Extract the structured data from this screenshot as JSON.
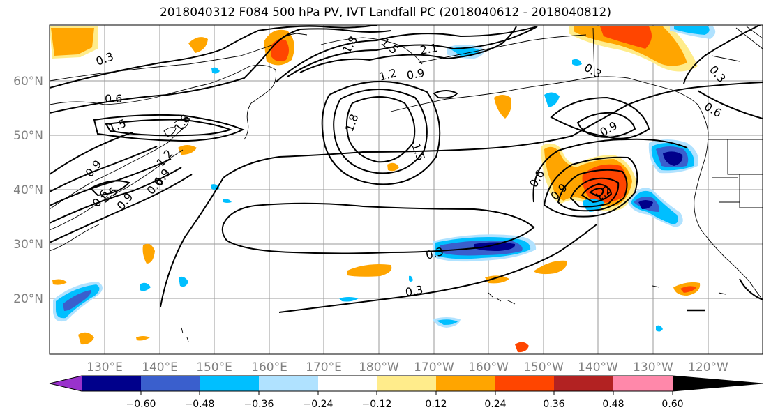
{
  "title": "2018040312 F084 500 hPa PV, IVT Landfall PC (2018040612 - 2018040812)",
  "lat_labels": [
    "20°N",
    "30°N",
    "40°N",
    "50°N",
    "60°N"
  ],
  "lon_labels": [
    "130°E",
    "140°E",
    "150°E",
    "160°E",
    "170°E",
    "180°W",
    "170°W",
    "160°W",
    "150°W",
    "140°W",
    "130°W",
    "120°W"
  ],
  "colorbar": {
    "colors": [
      "#9932cc",
      "#00008b",
      "#3a5fcd",
      "#00bfff",
      "#b0e2ff",
      "#ffffff",
      "#ffec8b",
      "#ffa500",
      "#ff4500",
      "#b22222",
      "#ff88aa"
    ],
    "tick_labels": [
      "−0.60",
      "−0.48",
      "−0.36",
      "−0.24",
      "−0.12",
      "0.12",
      "0.24",
      "0.36",
      "0.48",
      "0.60"
    ]
  },
  "contour_labels": [
    "0.3",
    "0.6",
    "1.5",
    "1.8",
    "1.2",
    "0.9",
    "1.8",
    "1.5",
    "2.1",
    "1.2",
    "0.9",
    "1.8",
    "1.5",
    "0.3",
    "0.3",
    "0.3",
    "0.6",
    "0.9",
    "0.6",
    "0.9",
    "0.3",
    "0.6",
    "0.9",
    "0.9",
    "0.6",
    "1.2",
    "1.5"
  ]
}
